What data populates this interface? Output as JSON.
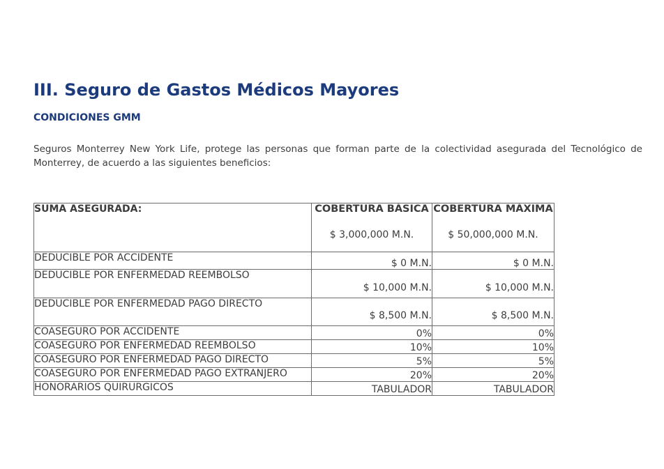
{
  "page": {
    "title": "III. Seguro de Gastos Médicos Mayores",
    "subtitle": "CONDICIONES GMM",
    "intro": "Seguros Monterrey New York Life, protege las personas que forman parte de la colectividad asegurada del Tecnológico de Monterrey, de acuerdo a las siguientes beneficios:"
  },
  "colors": {
    "heading": "#1c3b7d",
    "body_text": "#3d3d3d",
    "table_border": "#6b6b6b"
  },
  "table": {
    "header": {
      "col1": "SUMA ASEGURADA:",
      "col2_title": "COBERTURA BÁSICA",
      "col2_amount": "$ 3,000,000 M.N.",
      "col3_title": "COBERTURA MÁXIMA",
      "col3_amount": "$ 50,000,000 M.N."
    },
    "rows": [
      {
        "label": "DEDUCIBLE POR ACCIDENTE",
        "basica": "$ 0 M.N.",
        "maxima": "$ 0 M.N."
      },
      {
        "label": "DEDUCIBLE POR ENFERMEDAD REEMBOLSO",
        "basica": "$ 10,000 M.N.",
        "maxima": "$ 10,000 M.N."
      },
      {
        "label": "DEDUCIBLE POR ENFERMEDAD PAGO DIRECTO",
        "basica": "$ 8,500 M.N.",
        "maxima": "$ 8,500 M.N."
      },
      {
        "label": "COASEGURO POR ACCIDENTE",
        "basica": "0%",
        "maxima": "0%"
      },
      {
        "label": "COASEGURO POR ENFERMEDAD REEMBOLSO",
        "basica": "10%",
        "maxima": "10%"
      },
      {
        "label": "COASEGURO POR ENFERMEDAD PAGO DIRECTO",
        "basica": "5%",
        "maxima": "5%"
      },
      {
        "label": "COASEGURO POR ENFERMEDAD PAGO EXTRANJERO",
        "basica": "20%",
        "maxima": "20%"
      },
      {
        "label": "HONORARIOS QUIRURGICOS",
        "basica": "TABULADOR",
        "maxima": "TABULADOR"
      }
    ]
  }
}
